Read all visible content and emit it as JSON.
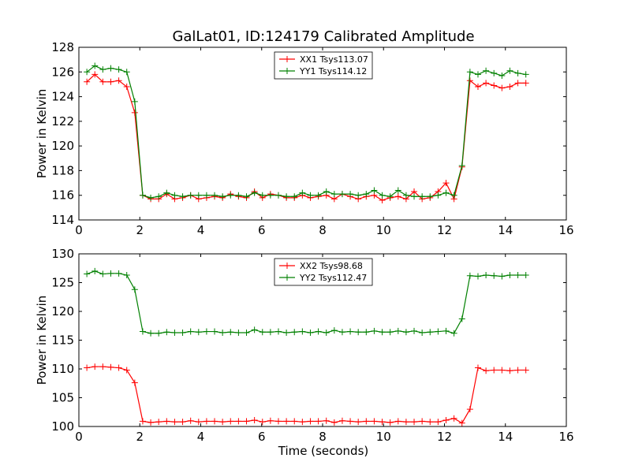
{
  "chart_data": [
    {
      "type": "line",
      "title": "GalLat01, ID:124179 Calibrated Amplitude",
      "xlabel": "",
      "ylabel": "Power in Kelvin",
      "xlim": [
        0,
        16
      ],
      "ylim": [
        114,
        128
      ],
      "xticks": [
        "0",
        "2",
        "4",
        "6",
        "8",
        "10",
        "12",
        "14",
        "16"
      ],
      "yticks": [
        "114",
        "116",
        "118",
        "120",
        "122",
        "124",
        "126",
        "128"
      ],
      "grid": false,
      "legend_position": "top-center",
      "x": [
        0.262,
        0.524,
        0.786,
        1.048,
        1.31,
        1.572,
        1.834,
        2.096,
        2.358,
        2.62,
        2.882,
        3.144,
        3.406,
        3.668,
        3.93,
        4.192,
        4.454,
        4.716,
        4.978,
        5.24,
        5.502,
        5.764,
        6.026,
        6.288,
        6.55,
        6.812,
        7.074,
        7.336,
        7.598,
        7.86,
        8.122,
        8.384,
        8.646,
        8.908,
        9.17,
        9.432,
        9.694,
        9.956,
        10.218,
        10.48,
        10.742,
        11.004,
        11.266,
        11.528,
        11.79,
        12.052,
        12.314,
        12.576,
        12.838,
        13.1,
        13.362,
        13.624,
        13.886,
        14.148,
        14.41,
        14.672
      ],
      "series": [
        {
          "name": "XX1 Tsys113.07",
          "color": "#ff0000",
          "values": [
            125.2,
            125.8,
            125.2,
            125.2,
            125.3,
            124.8,
            122.7,
            116.0,
            115.7,
            115.7,
            116.1,
            115.7,
            115.8,
            116.0,
            115.7,
            115.8,
            115.9,
            115.8,
            116.1,
            115.9,
            115.8,
            116.3,
            115.8,
            116.1,
            116.0,
            115.8,
            115.8,
            116.0,
            115.8,
            115.9,
            116.0,
            115.7,
            116.1,
            115.9,
            115.7,
            115.9,
            116.0,
            115.6,
            115.8,
            115.9,
            115.7,
            116.3,
            115.7,
            115.8,
            116.3,
            117.0,
            115.7,
            118.3,
            125.3,
            124.8,
            125.1,
            124.9,
            124.7,
            124.8,
            125.1,
            125.1
          ]
        },
        {
          "name": "YY1 Tsys114.12",
          "color": "#008000",
          "values": [
            126.0,
            126.5,
            126.2,
            126.3,
            126.2,
            126.0,
            123.6,
            116.0,
            115.8,
            115.9,
            116.2,
            116.0,
            115.9,
            116.0,
            116.0,
            116.0,
            116.0,
            115.9,
            116.0,
            116.0,
            115.9,
            116.2,
            116.0,
            116.0,
            116.0,
            115.9,
            115.9,
            116.2,
            116.0,
            116.0,
            116.3,
            116.1,
            116.1,
            116.1,
            116.0,
            116.1,
            116.4,
            116.0,
            115.9,
            116.4,
            116.0,
            115.9,
            115.9,
            115.9,
            116.0,
            116.2,
            116.0,
            118.4,
            126.0,
            125.8,
            126.1,
            125.9,
            125.7,
            126.1,
            125.9,
            125.8
          ]
        }
      ]
    },
    {
      "type": "line",
      "title": "",
      "xlabel": "Time (seconds)",
      "ylabel": "Power in Kelvin",
      "xlim": [
        0,
        16
      ],
      "ylim": [
        100,
        130
      ],
      "xticks": [
        "0",
        "2",
        "4",
        "6",
        "8",
        "10",
        "12",
        "14",
        "16"
      ],
      "yticks": [
        "100",
        "105",
        "110",
        "115",
        "120",
        "125",
        "130"
      ],
      "grid": false,
      "legend_position": "top-center",
      "x": [
        0.262,
        0.524,
        0.786,
        1.048,
        1.31,
        1.572,
        1.834,
        2.096,
        2.358,
        2.62,
        2.882,
        3.144,
        3.406,
        3.668,
        3.93,
        4.192,
        4.454,
        4.716,
        4.978,
        5.24,
        5.502,
        5.764,
        6.026,
        6.288,
        6.55,
        6.812,
        7.074,
        7.336,
        7.598,
        7.86,
        8.122,
        8.384,
        8.646,
        8.908,
        9.17,
        9.432,
        9.694,
        9.956,
        10.218,
        10.48,
        10.742,
        11.004,
        11.266,
        11.528,
        11.79,
        12.052,
        12.314,
        12.576,
        12.838,
        13.1,
        13.362,
        13.624,
        13.886,
        14.148,
        14.41,
        14.672
      ],
      "series": [
        {
          "name": "XX2 Tsys98.68",
          "color": "#ff0000",
          "values": [
            110.2,
            110.4,
            110.4,
            110.3,
            110.2,
            109.8,
            107.6,
            100.9,
            100.7,
            100.8,
            100.9,
            100.8,
            100.8,
            101.0,
            100.8,
            100.9,
            100.9,
            100.8,
            100.9,
            100.9,
            100.9,
            101.1,
            100.8,
            101.0,
            100.9,
            100.9,
            100.9,
            100.8,
            100.9,
            100.9,
            101.0,
            100.7,
            101.0,
            100.9,
            100.8,
            100.9,
            100.9,
            100.8,
            100.7,
            100.9,
            100.8,
            100.8,
            100.9,
            100.8,
            100.8,
            101.1,
            101.4,
            100.6,
            103.0,
            110.2,
            109.7,
            109.8,
            109.8,
            109.7,
            109.8,
            109.8
          ]
        },
        {
          "name": "YY2 Tsys112.47",
          "color": "#008000",
          "values": [
            126.5,
            127.0,
            126.5,
            126.6,
            126.6,
            126.3,
            123.8,
            116.5,
            116.2,
            116.2,
            116.4,
            116.3,
            116.3,
            116.5,
            116.4,
            116.5,
            116.5,
            116.3,
            116.4,
            116.3,
            116.3,
            116.8,
            116.4,
            116.4,
            116.5,
            116.3,
            116.4,
            116.5,
            116.3,
            116.5,
            116.3,
            116.7,
            116.4,
            116.5,
            116.4,
            116.4,
            116.6,
            116.4,
            116.4,
            116.6,
            116.4,
            116.6,
            116.3,
            116.4,
            116.5,
            116.6,
            116.2,
            118.7,
            126.2,
            126.1,
            126.3,
            126.2,
            126.1,
            126.3,
            126.3,
            126.3
          ]
        }
      ]
    }
  ]
}
